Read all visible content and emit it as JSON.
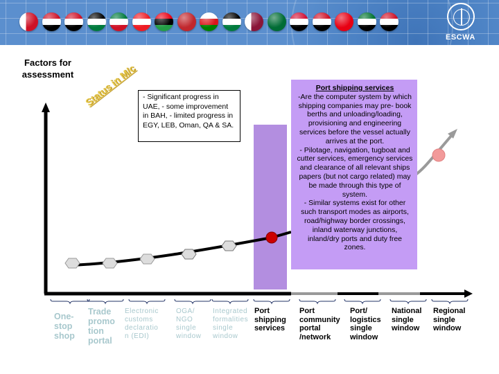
{
  "header": {
    "flags": [
      {
        "name": "bahrain",
        "colors": [
          "#ffffff",
          "#ce1126"
        ]
      },
      {
        "name": "egypt",
        "colors": [
          "#ce1126",
          "#ffffff",
          "#000000"
        ]
      },
      {
        "name": "iraq",
        "colors": [
          "#ce1126",
          "#ffffff",
          "#000000"
        ]
      },
      {
        "name": "jordan",
        "colors": [
          "#000000",
          "#ffffff",
          "#007a3d"
        ]
      },
      {
        "name": "kuwait",
        "colors": [
          "#007a3d",
          "#ffffff",
          "#ce1126"
        ]
      },
      {
        "name": "lebanon",
        "colors": [
          "#ed1c24",
          "#ffffff",
          "#ed1c24"
        ]
      },
      {
        "name": "libya",
        "colors": [
          "#e70013",
          "#000000",
          "#239e46"
        ]
      },
      {
        "name": "morocco",
        "colors": [
          "#c1272d"
        ]
      },
      {
        "name": "oman",
        "colors": [
          "#ffffff",
          "#db161b",
          "#008000"
        ]
      },
      {
        "name": "palestine",
        "colors": [
          "#000000",
          "#ffffff",
          "#007a3d"
        ]
      },
      {
        "name": "qatar",
        "colors": [
          "#ffffff",
          "#8a1538"
        ]
      },
      {
        "name": "saudi-arabia",
        "colors": [
          "#006c35"
        ]
      },
      {
        "name": "sudan",
        "colors": [
          "#d21034",
          "#ffffff",
          "#000000"
        ]
      },
      {
        "name": "syria",
        "colors": [
          "#ce1126",
          "#ffffff",
          "#000000"
        ]
      },
      {
        "name": "tunisia",
        "colors": [
          "#e70013"
        ]
      },
      {
        "name": "uae",
        "colors": [
          "#00732f",
          "#ffffff",
          "#000000"
        ]
      },
      {
        "name": "yemen",
        "colors": [
          "#ce1126",
          "#ffffff",
          "#000000"
        ]
      }
    ],
    "logo_text": "ESCWA"
  },
  "diagram": {
    "y_axis_label": "Factors for assessment",
    "status_label": "Status in M/c",
    "status_note": "- Significant progress in UAE, - some improvement in BAH, - limited progress in  EGY, LEB, Oman, QA & SA.",
    "highlight_box": {
      "title": "Port shipping services",
      "body": "-Are the computer system by which shipping companies may pre- book berths and unloading/loading, provisioning and engineering services before the vessel actually arrives at the port.\n- Pilotage, navigation, tugboat and cutter services, emergency services and clearance of all relevant ships papers (but not cargo related) may be made through this type of system.\n- Similar systems exist for other such transport modes as airports, road/highway border crossings, inland waterway junctions, inland/dry ports and duty free zones."
    },
    "stages": [
      {
        "label": "One-stop shop",
        "style": "faded big"
      },
      {
        "label": "Trade promotion portal",
        "style": "faded big"
      },
      {
        "label": "Electronic customs declaration (EDI)",
        "style": "faded small"
      },
      {
        "label": "OGA/ NGO single window",
        "style": "faded small"
      },
      {
        "label": "Integrated formalities single window",
        "style": "faded small"
      },
      {
        "label": "Port shipping services",
        "style": "dark"
      },
      {
        "label": "Port community portal /network",
        "style": "dark"
      },
      {
        "label": "Port/ logistics single window",
        "style": "dark"
      },
      {
        "label": "National single window",
        "style": "dark"
      },
      {
        "label": "Regional single window",
        "style": "dark"
      }
    ],
    "stage_label_lines": [
      [
        "One-",
        "stop",
        "shop"
      ],
      [
        "Trade",
        "promo",
        "tion",
        "portal"
      ],
      [
        "Electronic",
        "customs",
        "declaratio",
        "n (EDI)"
      ],
      [
        "OGA/",
        "NGO",
        "single",
        "window"
      ],
      [
        "Integrated",
        "formalities",
        "single",
        "window"
      ],
      [
        "Port",
        "shipping",
        "services"
      ],
      [
        "Port",
        "community",
        "portal",
        "/network"
      ],
      [
        "Port/",
        "logistics",
        "single",
        "window"
      ],
      [
        "National",
        "single",
        "window"
      ],
      [
        "Regional",
        "single",
        "window"
      ]
    ],
    "current_stage": "Port shipping services",
    "colors": {
      "highlight_purple": "#c49cf5",
      "column_purple": "#b38ee0",
      "current_point": "#cc0000",
      "future_point": "#f29a9a",
      "past_point": "#dddddd",
      "status_gold": "#e6c84a"
    }
  }
}
